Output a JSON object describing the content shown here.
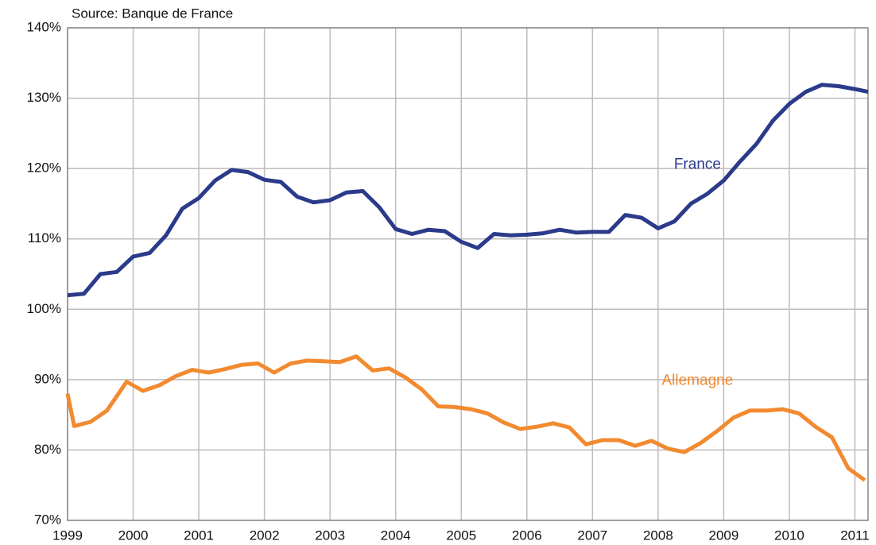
{
  "chart_data": {
    "type": "line",
    "source": "Source: Banque de France",
    "x": [
      1999,
      1999.1,
      1999.25,
      1999.35,
      1999.5,
      1999.6,
      1999.75,
      1999.9,
      2000,
      2000.15,
      2000.25,
      2000.4,
      2000.5,
      2000.65,
      2000.75,
      2000.9,
      2001,
      2001.15,
      2001.25,
      2001.4,
      2001.5,
      2001.65,
      2001.75,
      2001.9,
      2002,
      2002.15,
      2002.25,
      2002.4,
      2002.5,
      2002.65,
      2002.75,
      2002.9,
      2003,
      2003.15,
      2003.25,
      2003.4,
      2003.5,
      2003.65,
      2003.75,
      2003.9,
      2004,
      2004.15,
      2004.25,
      2004.4,
      2004.5,
      2004.65,
      2004.75,
      2004.9,
      2005,
      2005.15,
      2005.25,
      2005.4,
      2005.5,
      2005.65,
      2005.75,
      2005.9,
      2006,
      2006.15,
      2006.25,
      2006.4,
      2006.5,
      2006.65,
      2006.75,
      2006.9,
      2007,
      2007.15,
      2007.25,
      2007.4,
      2007.5,
      2007.65,
      2007.75,
      2007.9,
      2008,
      2008.15,
      2008.25,
      2008.4,
      2008.5,
      2008.65,
      2008.75,
      2008.9,
      2009,
      2009.15,
      2009.25,
      2009.4,
      2009.5,
      2009.65,
      2009.75,
      2009.9,
      2010,
      2010.15,
      2010.25,
      2010.4,
      2010.5,
      2010.65,
      2010.75,
      2010.9,
      2011,
      2011.15,
      2011.2
    ],
    "series": [
      {
        "name": "France",
        "color": "#2b3a8a",
        "values": [
          102,
          null,
          102.2,
          null,
          105,
          null,
          105.3,
          null,
          107.5,
          null,
          108,
          null,
          110.5,
          null,
          114.3,
          null,
          115.8,
          null,
          118.3,
          null,
          119.8,
          null,
          119.5,
          null,
          118.4,
          null,
          118.1,
          null,
          116,
          null,
          115.2,
          null,
          115.5,
          null,
          116.6,
          null,
          116.8,
          null,
          114.5,
          null,
          111.4,
          null,
          110.7,
          null,
          111.3,
          null,
          111.1,
          null,
          109.6,
          null,
          108.7,
          null,
          110.7,
          null,
          110.5,
          null,
          110.6,
          null,
          110.8,
          null,
          111.3,
          null,
          110.9,
          null,
          111,
          null,
          111,
          null,
          113.4,
          null,
          113,
          null,
          111.5,
          null,
          112.5,
          null,
          115,
          null,
          116.4,
          null,
          118.3,
          null,
          121,
          null,
          123.5,
          null,
          126.8,
          null,
          129.2,
          null,
          130.9,
          null,
          131.9,
          null,
          131.7,
          null,
          131.3,
          null,
          130.9
        ]
      },
      {
        "name": "Allemagne",
        "color": "#f28a30",
        "values": [
          88,
          83.4,
          null,
          84,
          null,
          85.6,
          null,
          89.7,
          null,
          88.4,
          null,
          89.2,
          null,
          90.5,
          null,
          91.4,
          null,
          91,
          null,
          91.5,
          null,
          92.1,
          null,
          92.3,
          null,
          91,
          null,
          92.3,
          null,
          92.7,
          null,
          92.6,
          null,
          92.5,
          null,
          93.3,
          null,
          91.3,
          null,
          91.6,
          null,
          90.3,
          null,
          88.6,
          null,
          86.2,
          null,
          86.1,
          null,
          85.8,
          null,
          85.2,
          null,
          83.9,
          null,
          83,
          null,
          83.3,
          null,
          83.8,
          null,
          83.2,
          null,
          80.8,
          null,
          81.4,
          null,
          81.4,
          null,
          80.6,
          null,
          81.3,
          null,
          80.2,
          null,
          79.7,
          null,
          81,
          null,
          82.7,
          null,
          84.6,
          null,
          85.6,
          null,
          85.6,
          null,
          85.8,
          null,
          85.2,
          null,
          83.3,
          null,
          81.8,
          null,
          77.4,
          null,
          75.7,
          null
        ]
      }
    ],
    "xlim": [
      1999,
      2011.2
    ],
    "xticks": [
      1999,
      2000,
      2001,
      2002,
      2003,
      2004,
      2005,
      2006,
      2007,
      2008,
      2009,
      2010,
      2011
    ],
    "ylim": [
      70,
      140
    ],
    "yticks": [
      {
        "value": 70,
        "label": "70%"
      },
      {
        "value": 80,
        "label": "80%"
      },
      {
        "value": 90,
        "label": "90%"
      },
      {
        "value": 100,
        "label": "100%"
      },
      {
        "value": 110,
        "label": "110%"
      },
      {
        "value": 120,
        "label": "120%"
      },
      {
        "value": 130,
        "label": "130%"
      },
      {
        "value": 140,
        "label": "140%"
      }
    ],
    "grid": true
  }
}
